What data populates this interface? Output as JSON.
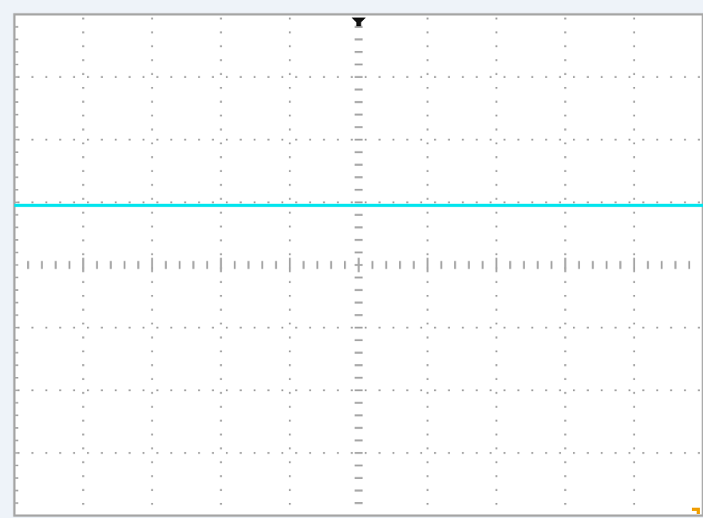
{
  "scope": {
    "grid": {
      "horizontal_divisions": 10,
      "vertical_divisions": 8,
      "grid_color": "#a8a8a8",
      "frame_color": "#a8a8a8",
      "background_color": "#ffffff",
      "outer_background_color": "#eef3f9"
    },
    "trace": {
      "channel_color": "#00e5ee",
      "level_divisions_from_top": 3.05,
      "shape": "flat"
    },
    "trigger_position_marker": {
      "icon": "trigger-position-arrow-icon",
      "color": "#111111",
      "position_divisions_from_left": 5.0
    },
    "corner_marker": {
      "icon": "corner-marker-icon",
      "color": "#f0a000"
    }
  }
}
